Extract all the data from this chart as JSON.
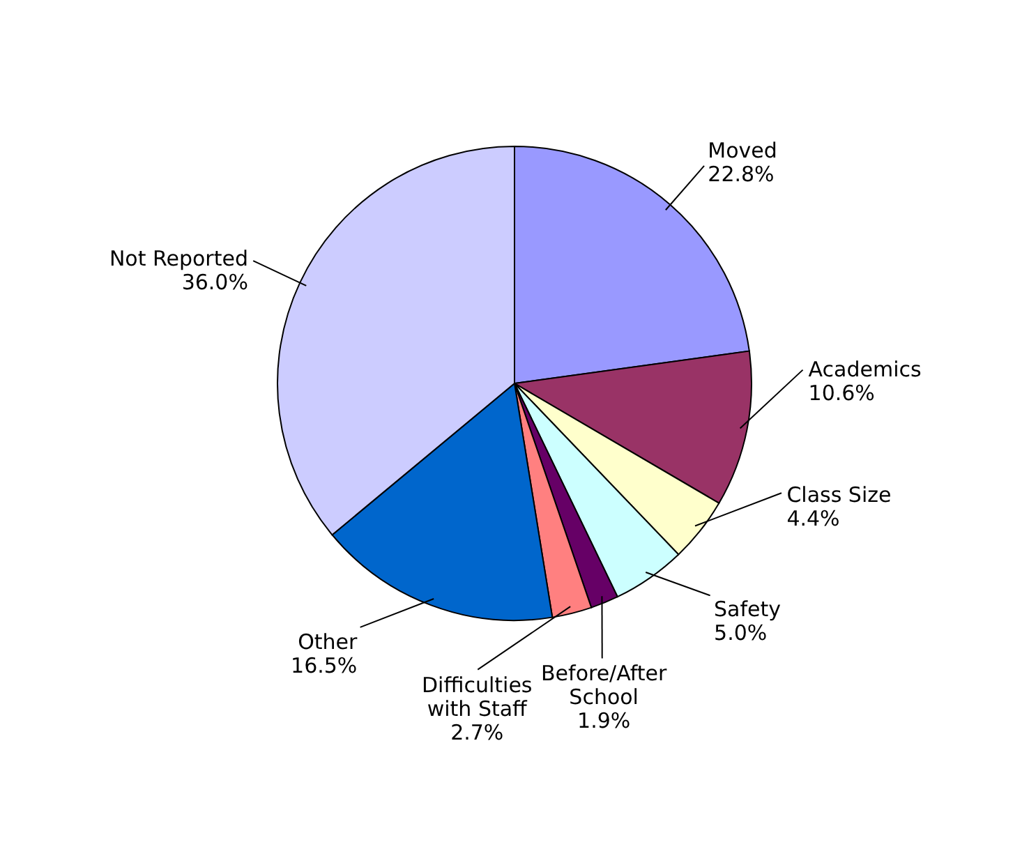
{
  "chart_data": {
    "type": "pie",
    "categories": [
      "Moved",
      "Academics",
      "Class Size",
      "Safety",
      "Before/After School",
      "Difficulties with Staff",
      "Other",
      "Not Reported"
    ],
    "values": [
      22.8,
      10.6,
      4.4,
      5.0,
      1.9,
      2.7,
      16.5,
      36.0
    ],
    "colors": [
      "#9999ff",
      "#993366",
      "#ffffcc",
      "#ccffff",
      "#660066",
      "#ff8080",
      "#0066cc",
      "#ccccff"
    ],
    "value_labels": [
      "22.8%",
      "10.6%",
      "4.4%",
      "5.0%",
      "1.9%",
      "2.7%",
      "16.5%",
      "36.0%"
    ]
  }
}
